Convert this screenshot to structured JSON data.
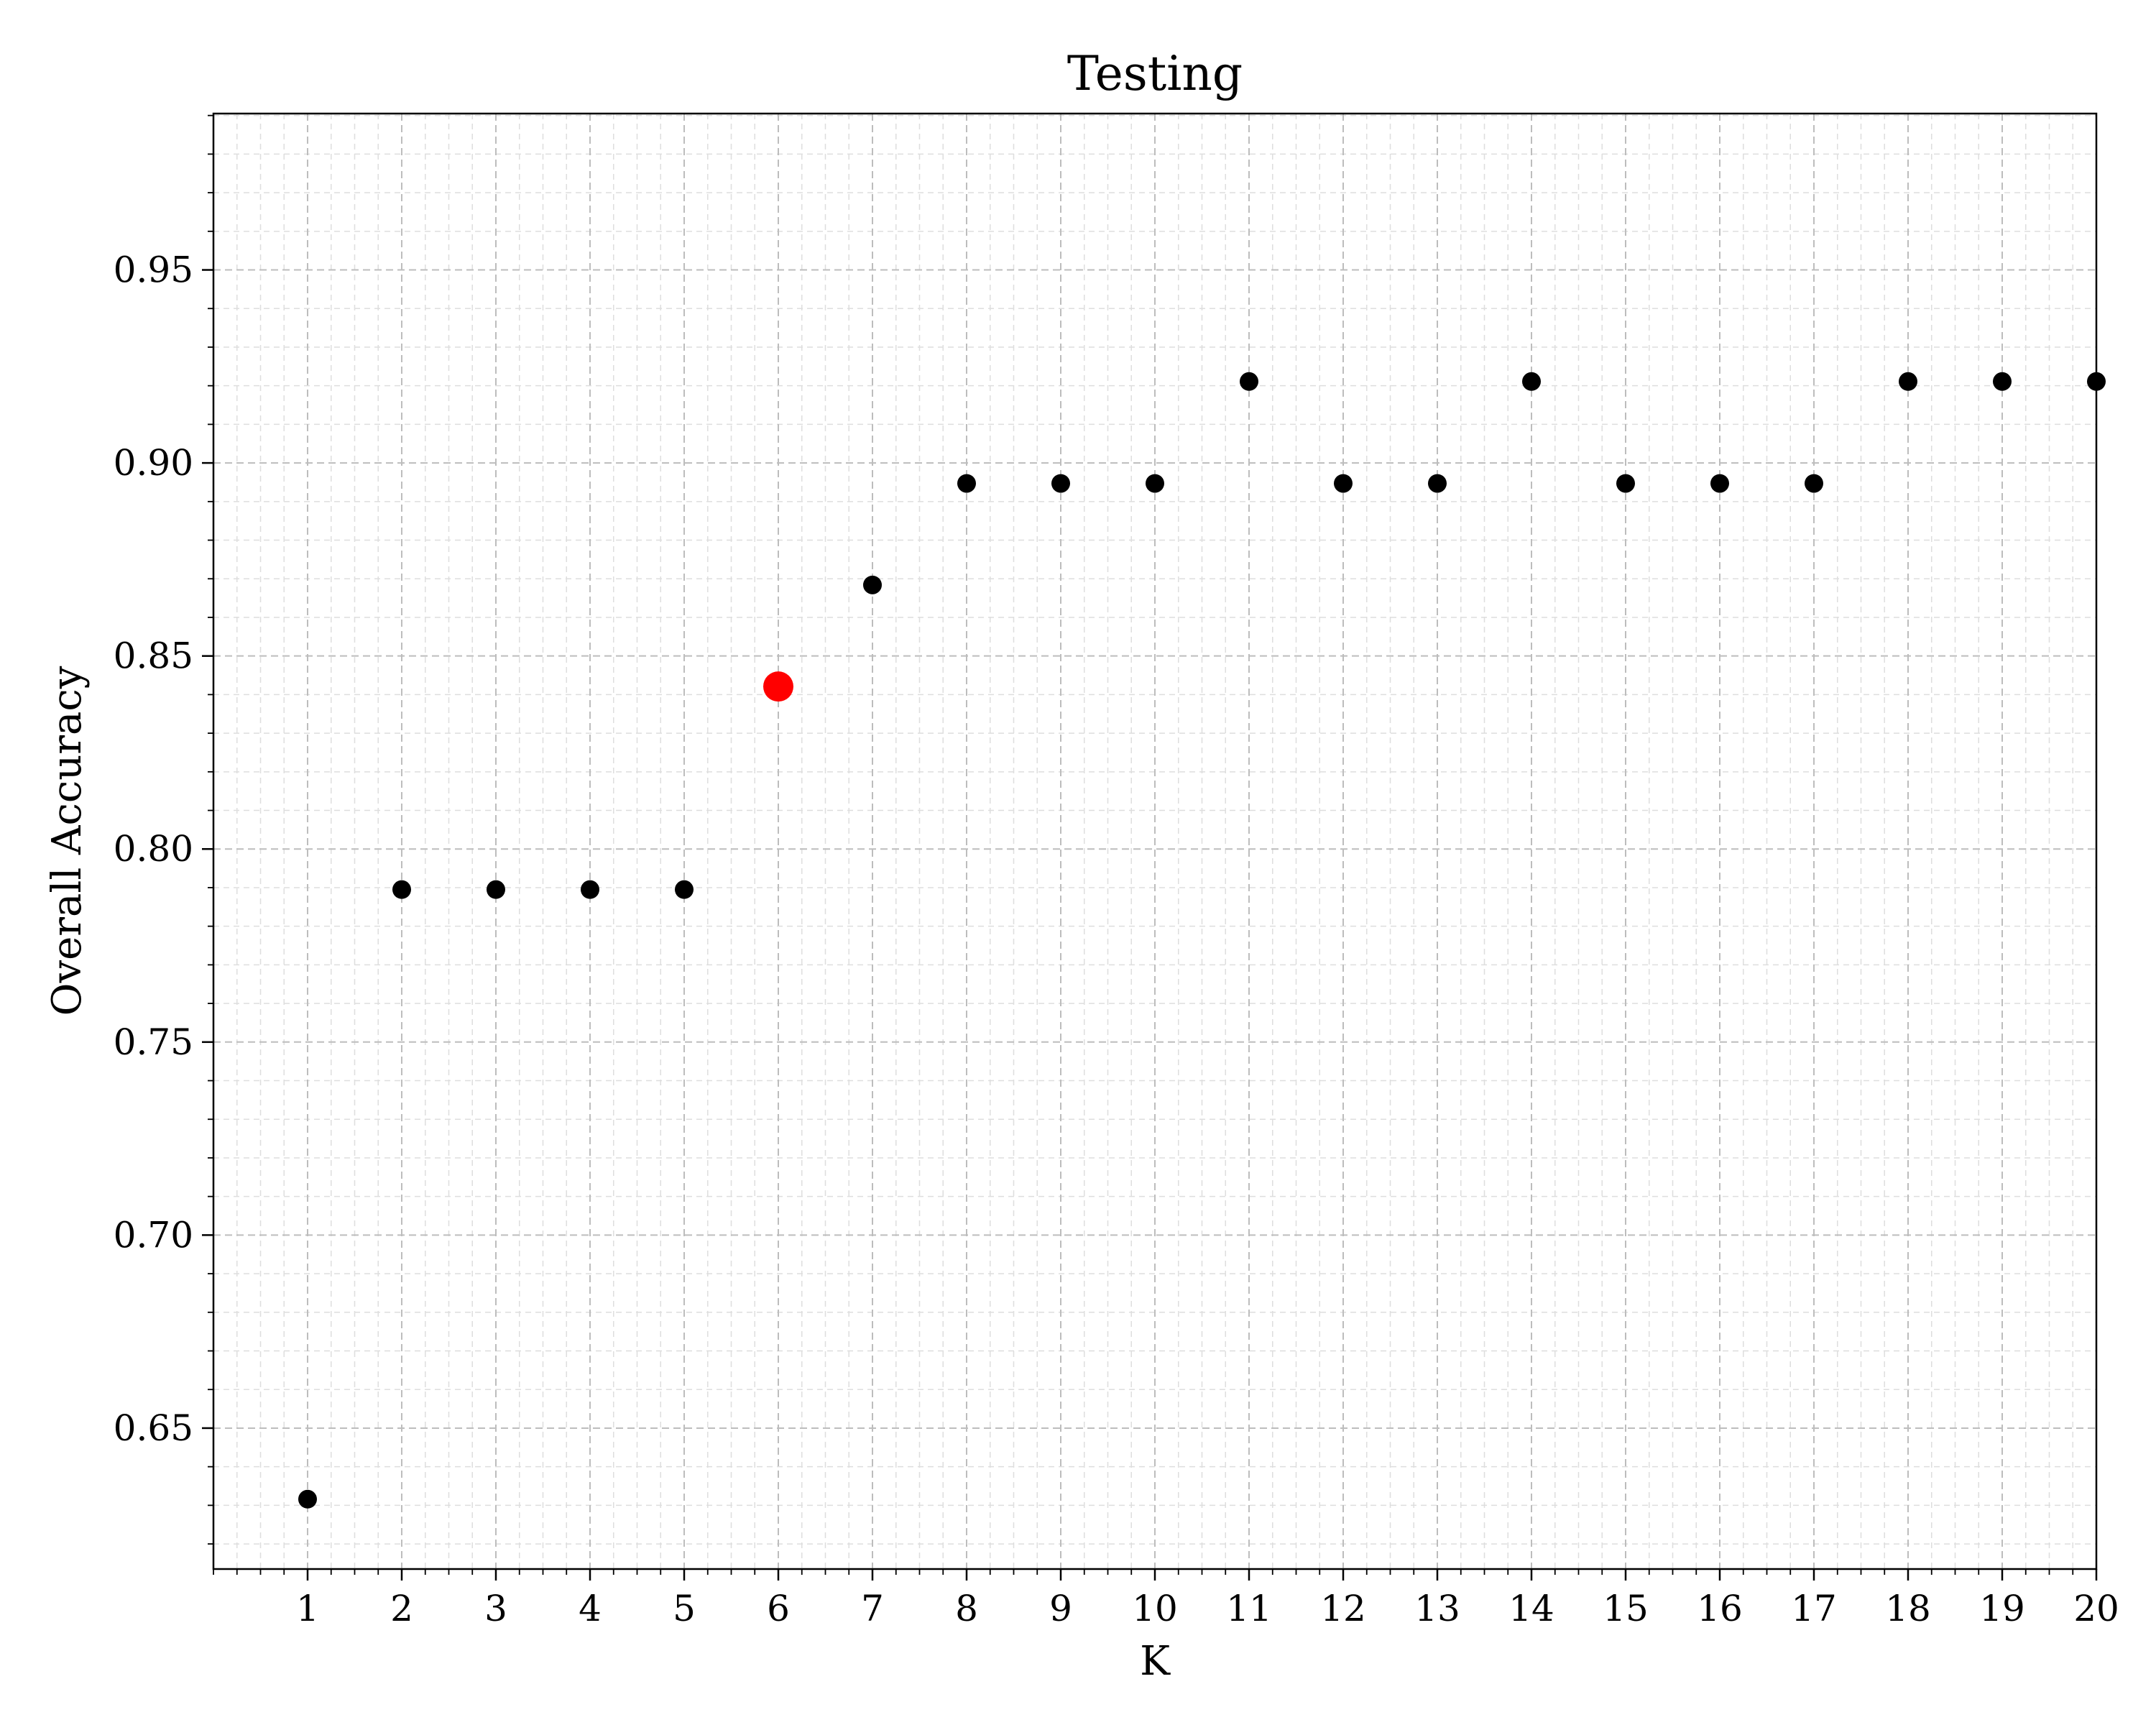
{
  "chart_data": {
    "type": "scatter",
    "title": "Testing",
    "xlabel": "K",
    "ylabel": "Overall Accuracy",
    "xlim": [
      0,
      20
    ],
    "ylim": [
      0.6135,
      0.9905
    ],
    "x_ticks": [
      1,
      2,
      3,
      4,
      5,
      6,
      7,
      8,
      9,
      10,
      11,
      12,
      13,
      14,
      15,
      16,
      17,
      18,
      19,
      20
    ],
    "y_ticks": [
      0.65,
      0.7,
      0.75,
      0.8,
      0.85,
      0.9,
      0.95
    ],
    "y_tick_labels": [
      "0.65",
      "0.70",
      "0.75",
      "0.80",
      "0.85",
      "0.90",
      "0.95"
    ],
    "grid": true,
    "series": [
      {
        "color": "#000000",
        "points": [
          {
            "x": 1,
            "y": 0.6316
          },
          {
            "x": 2,
            "y": 0.7895
          },
          {
            "x": 3,
            "y": 0.7895
          },
          {
            "x": 4,
            "y": 0.7895
          },
          {
            "x": 5,
            "y": 0.7895
          },
          {
            "x": 7,
            "y": 0.8684
          },
          {
            "x": 8,
            "y": 0.8947
          },
          {
            "x": 9,
            "y": 0.8947
          },
          {
            "x": 10,
            "y": 0.8947
          },
          {
            "x": 11,
            "y": 0.9211
          },
          {
            "x": 12,
            "y": 0.8947
          },
          {
            "x": 13,
            "y": 0.8947
          },
          {
            "x": 14,
            "y": 0.9211
          },
          {
            "x": 15,
            "y": 0.8947
          },
          {
            "x": 16,
            "y": 0.8947
          },
          {
            "x": 17,
            "y": 0.8947
          },
          {
            "x": 18,
            "y": 0.9211
          },
          {
            "x": 19,
            "y": 0.9211
          },
          {
            "x": 20,
            "y": 0.9211
          }
        ]
      },
      {
        "color": "#ff0000",
        "highlight": true,
        "points": [
          {
            "x": 6,
            "y": 0.8421
          }
        ]
      }
    ]
  }
}
